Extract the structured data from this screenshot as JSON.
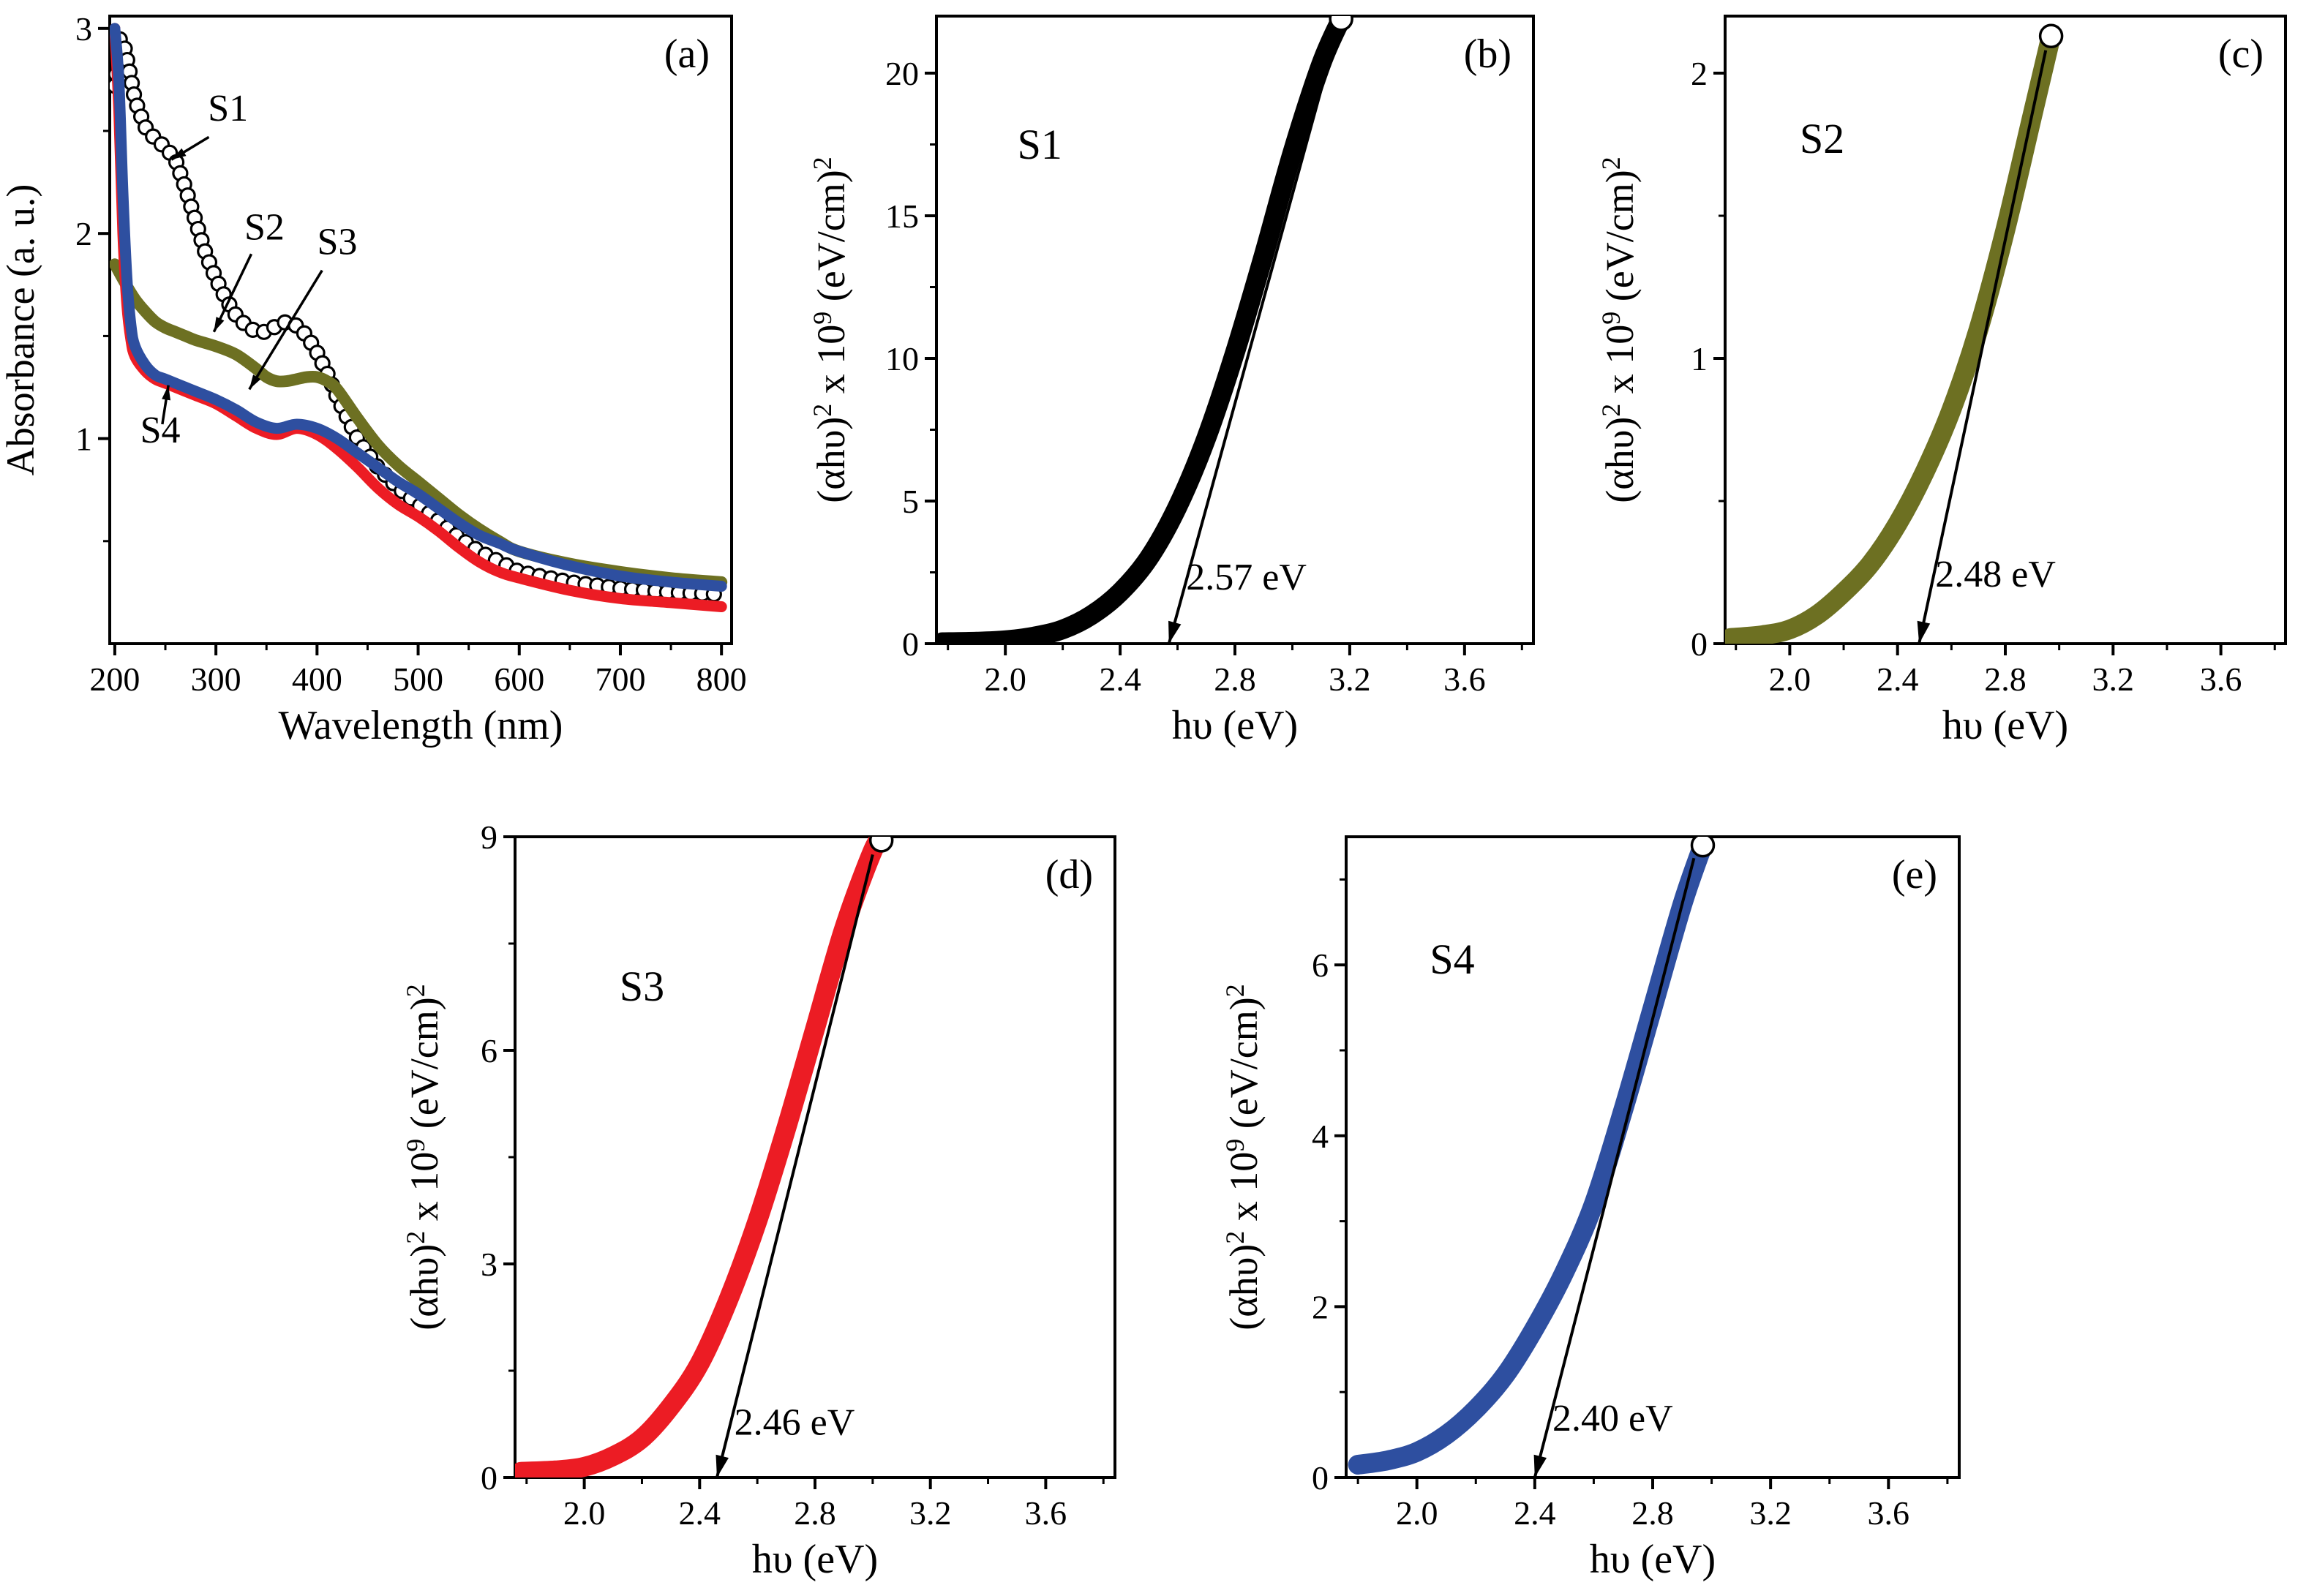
{
  "figure": {
    "background": "#ffffff"
  },
  "colors": {
    "s1": "#000000",
    "s2": "#6d7022",
    "s3": "#ec1c24",
    "s4": "#2e4fa0"
  },
  "chart_data": [
    {
      "id": "a",
      "panel_label": "(a)",
      "type": "line",
      "xlabel": "Wavelength (nm)",
      "ylabel": "Absorbance (a. u.)",
      "xlim": [
        195,
        810
      ],
      "ylim": [
        0,
        3.06
      ],
      "xticks": [
        200,
        300,
        400,
        500,
        600,
        700,
        800
      ],
      "xtick_labels": [
        "200",
        "300",
        "400",
        "500",
        "600",
        "700",
        "800"
      ],
      "yticks": [
        1,
        2,
        3
      ],
      "ytick_labels": [
        "1",
        "2",
        "3"
      ],
      "series": [
        {
          "name": "S1",
          "color": "#000000",
          "marker": "o",
          "width": 3,
          "x": [
            200,
            205,
            210,
            215,
            220,
            230,
            240,
            250,
            260,
            270,
            280,
            290,
            300,
            310,
            320,
            330,
            340,
            350,
            360,
            370,
            380,
            390,
            400,
            410,
            420,
            440,
            460,
            480,
            500,
            520,
            540,
            560,
            580,
            600,
            650,
            700,
            750,
            800
          ],
          "y": [
            2.72,
            2.95,
            2.9,
            2.78,
            2.65,
            2.52,
            2.46,
            2.42,
            2.36,
            2.22,
            2.06,
            1.9,
            1.78,
            1.68,
            1.6,
            1.55,
            1.52,
            1.52,
            1.55,
            1.57,
            1.55,
            1.5,
            1.42,
            1.32,
            1.2,
            1.0,
            0.86,
            0.76,
            0.68,
            0.6,
            0.52,
            0.45,
            0.4,
            0.35,
            0.3,
            0.27,
            0.25,
            0.24
          ]
        },
        {
          "name": "S2",
          "color": "#6d7022",
          "width": 16,
          "x": [
            200,
            210,
            220,
            230,
            240,
            250,
            260,
            270,
            280,
            300,
            320,
            340,
            350,
            360,
            370,
            380,
            390,
            400,
            410,
            420,
            440,
            460,
            480,
            500,
            520,
            540,
            560,
            580,
            600,
            650,
            700,
            750,
            800
          ],
          "y": [
            1.85,
            1.76,
            1.68,
            1.62,
            1.57,
            1.54,
            1.52,
            1.5,
            1.48,
            1.45,
            1.41,
            1.34,
            1.3,
            1.28,
            1.28,
            1.29,
            1.3,
            1.3,
            1.28,
            1.24,
            1.1,
            0.97,
            0.87,
            0.79,
            0.71,
            0.63,
            0.56,
            0.5,
            0.45,
            0.39,
            0.35,
            0.32,
            0.3
          ]
        },
        {
          "name": "S3",
          "color": "#ec1c24",
          "width": 15,
          "x": [
            200,
            204,
            208,
            212,
            216,
            220,
            230,
            240,
            250,
            260,
            280,
            300,
            320,
            340,
            360,
            380,
            400,
            420,
            440,
            460,
            480,
            500,
            520,
            540,
            560,
            580,
            600,
            650,
            700,
            750,
            800
          ],
          "y": [
            3.0,
            2.6,
            2.0,
            1.65,
            1.48,
            1.4,
            1.33,
            1.29,
            1.27,
            1.25,
            1.21,
            1.17,
            1.11,
            1.05,
            1.02,
            1.05,
            1.02,
            0.95,
            0.86,
            0.76,
            0.68,
            0.62,
            0.55,
            0.47,
            0.4,
            0.35,
            0.32,
            0.26,
            0.22,
            0.2,
            0.18
          ]
        },
        {
          "name": "S4",
          "color": "#2e4fa0",
          "width": 15,
          "x": [
            200,
            204,
            208,
            212,
            216,
            220,
            230,
            240,
            250,
            260,
            280,
            300,
            320,
            340,
            360,
            380,
            400,
            420,
            440,
            460,
            480,
            500,
            520,
            540,
            560,
            580,
            600,
            650,
            700,
            750,
            800
          ],
          "y": [
            3.0,
            2.75,
            2.2,
            1.78,
            1.55,
            1.45,
            1.36,
            1.31,
            1.29,
            1.27,
            1.23,
            1.19,
            1.14,
            1.08,
            1.05,
            1.07,
            1.05,
            1.0,
            0.93,
            0.86,
            0.79,
            0.73,
            0.66,
            0.59,
            0.53,
            0.49,
            0.45,
            0.38,
            0.33,
            0.3,
            0.28
          ]
        }
      ],
      "labels": [
        {
          "text": "S1",
          "color": "#000000",
          "x": 312,
          "y": 2.55,
          "size": 52
        },
        {
          "text": "S2",
          "color": "#6d7022",
          "x": 348,
          "y": 1.97,
          "size": 52
        },
        {
          "text": "S3",
          "color": "#ec1c24",
          "x": 420,
          "y": 1.9,
          "size": 52
        },
        {
          "text": "S4",
          "color": "#2e4fa0",
          "x": 245,
          "y": 0.98,
          "size": 52
        }
      ],
      "arrows": [
        {
          "from": [
            293,
            2.47
          ],
          "to": [
            256,
            2.36
          ],
          "color": "#000000"
        },
        {
          "from": [
            335,
            1.9
          ],
          "to": [
            298,
            1.52
          ],
          "color": "#000000"
        },
        {
          "from": [
            405,
            1.82
          ],
          "to": [
            333,
            1.24
          ],
          "color": "#000000"
        },
        {
          "from": [
            247,
            1.07
          ],
          "to": [
            253,
            1.26
          ],
          "color": "#000000"
        }
      ]
    },
    {
      "id": "b",
      "panel_label": "(b)",
      "type": "line",
      "xlabel": "hυ (eV)",
      "ylabel_rich": [
        {
          "t": "(αhυ)"
        },
        {
          "t": "2",
          "sup": 1
        },
        {
          "t": " x 10"
        },
        {
          "t": "9",
          "sup": 1
        },
        {
          "t": " (eV/cm)"
        },
        {
          "t": "2",
          "sup": 1
        }
      ],
      "xlim": [
        1.76,
        3.84
      ],
      "ylim": [
        0,
        22
      ],
      "xticks": [
        2.0,
        2.4,
        2.8,
        3.2,
        3.6
      ],
      "xtick_labels": [
        "2.0",
        "2.4",
        "2.8",
        "3.2",
        "3.6"
      ],
      "yticks": [
        0,
        5,
        10,
        15,
        20
      ],
      "ytick_labels": [
        "0",
        "5",
        "10",
        "15",
        "20"
      ],
      "band_gap_ev": 2.57,
      "series": [
        {
          "name": "S1",
          "color": "#000000",
          "width": 27,
          "x": [
            1.78,
            1.9,
            2.0,
            2.1,
            2.2,
            2.3,
            2.4,
            2.5,
            2.6,
            2.7,
            2.8,
            2.9,
            3.0,
            3.1,
            3.17
          ],
          "y": [
            0.05,
            0.07,
            0.12,
            0.25,
            0.5,
            1.0,
            1.8,
            3.0,
            4.8,
            7.2,
            10.2,
            13.6,
            17.2,
            20.3,
            21.9
          ]
        }
      ],
      "fit_line": {
        "top": [
          3.16,
          21.6
        ],
        "foot": [
          2.57,
          0
        ]
      },
      "end_circle": [
        3.17,
        21.9
      ],
      "labels": [
        {
          "text": "S1",
          "color": "#000000",
          "x": 2.12,
          "y": 17,
          "size": 58
        },
        {
          "text": "2.57 eV",
          "color": "#000000",
          "x": 2.63,
          "y": 1.9,
          "size": 52,
          "anchor": "start"
        }
      ],
      "arrows": []
    },
    {
      "id": "c",
      "panel_label": "(c)",
      "type": "line",
      "xlabel": "hυ (eV)",
      "ylabel_rich": [
        {
          "t": "(αhυ)"
        },
        {
          "t": "2",
          "sup": 1
        },
        {
          "t": " x 10"
        },
        {
          "t": "9",
          "sup": 1
        },
        {
          "t": " (eV/cm)"
        },
        {
          "t": "2",
          "sup": 1
        }
      ],
      "xlim": [
        1.76,
        3.84
      ],
      "ylim": [
        0,
        2.2
      ],
      "xticks": [
        2.0,
        2.4,
        2.8,
        3.2,
        3.6
      ],
      "xtick_labels": [
        "2.0",
        "2.4",
        "2.8",
        "3.2",
        "3.6"
      ],
      "yticks": [
        0,
        1,
        2
      ],
      "ytick_labels": [
        "0",
        "1",
        "2"
      ],
      "band_gap_ev": 2.48,
      "series": [
        {
          "name": "S2",
          "color": "#6d7022",
          "width": 27,
          "x": [
            1.78,
            1.9,
            2.0,
            2.1,
            2.2,
            2.3,
            2.4,
            2.5,
            2.6,
            2.7,
            2.8,
            2.9,
            2.97
          ],
          "y": [
            0.02,
            0.03,
            0.05,
            0.1,
            0.18,
            0.28,
            0.42,
            0.6,
            0.82,
            1.1,
            1.45,
            1.85,
            2.13
          ]
        }
      ],
      "fit_line": {
        "top": [
          2.95,
          2.08
        ],
        "foot": [
          2.48,
          0
        ]
      },
      "end_circle": [
        2.97,
        2.13
      ],
      "labels": [
        {
          "text": "S2",
          "color": "#6d7022",
          "x": 2.12,
          "y": 1.72,
          "size": 58
        },
        {
          "text": "2.48 eV",
          "color": "#000000",
          "x": 2.54,
          "y": 0.2,
          "size": 52,
          "anchor": "start"
        }
      ],
      "arrows": []
    },
    {
      "id": "d",
      "panel_label": "(d)",
      "type": "line",
      "xlabel": "hυ (eV)",
      "ylabel_rich": [
        {
          "t": "(αhυ)"
        },
        {
          "t": "2",
          "sup": 1
        },
        {
          "t": " x 10"
        },
        {
          "t": "9",
          "sup": 1
        },
        {
          "t": " (eV/cm)"
        },
        {
          "t": "2",
          "sup": 1
        }
      ],
      "xlim": [
        1.76,
        3.84
      ],
      "ylim": [
        0,
        9.0
      ],
      "xticks": [
        2.0,
        2.4,
        2.8,
        3.2,
        3.6
      ],
      "xtick_labels": [
        "2.0",
        "2.4",
        "2.8",
        "3.2",
        "3.6"
      ],
      "yticks": [
        0,
        3,
        6,
        9
      ],
      "ytick_labels": [
        "0",
        "3",
        "6",
        "9"
      ],
      "band_gap_ev": 2.46,
      "series": [
        {
          "name": "S3",
          "color": "#ec1c24",
          "width": 27,
          "x": [
            1.78,
            1.9,
            2.0,
            2.1,
            2.2,
            2.3,
            2.4,
            2.5,
            2.6,
            2.7,
            2.8,
            2.9,
            3.0,
            3.03
          ],
          "y": [
            0.08,
            0.1,
            0.15,
            0.3,
            0.55,
            1.0,
            1.6,
            2.5,
            3.6,
            4.9,
            6.3,
            7.7,
            8.8,
            8.95
          ]
        }
      ],
      "fit_line": {
        "top": [
          3.0,
          8.75
        ],
        "foot": [
          2.46,
          0
        ]
      },
      "end_circle": [
        3.03,
        8.95
      ],
      "labels": [
        {
          "text": "S3",
          "color": "#ec1c24",
          "x": 2.2,
          "y": 6.7,
          "size": 58
        },
        {
          "text": "2.46 eV",
          "color": "#000000",
          "x": 2.52,
          "y": 0.6,
          "size": 52,
          "anchor": "start"
        }
      ],
      "arrows": []
    },
    {
      "id": "e",
      "panel_label": "(e)",
      "type": "line",
      "xlabel": "hυ (eV)",
      "ylabel_rich": [
        {
          "t": "(αhυ)"
        },
        {
          "t": "2",
          "sup": 1
        },
        {
          "t": " x 10"
        },
        {
          "t": "9",
          "sup": 1
        },
        {
          "t": " (eV/cm)"
        },
        {
          "t": "2",
          "sup": 1
        }
      ],
      "xlim": [
        1.76,
        3.84
      ],
      "ylim": [
        0,
        7.5
      ],
      "xticks": [
        2.0,
        2.4,
        2.8,
        3.2,
        3.6
      ],
      "xtick_labels": [
        "2.0",
        "2.4",
        "2.8",
        "3.2",
        "3.6"
      ],
      "yticks": [
        0,
        2,
        4,
        6
      ],
      "ytick_labels": [
        "0",
        "2",
        "4",
        "6"
      ],
      "band_gap_ev": 2.4,
      "series": [
        {
          "name": "S4",
          "color": "#2e4fa0",
          "width": 27,
          "x": [
            1.8,
            1.9,
            2.0,
            2.1,
            2.2,
            2.3,
            2.4,
            2.5,
            2.6,
            2.7,
            2.8,
            2.9,
            2.97
          ],
          "y": [
            0.15,
            0.2,
            0.3,
            0.5,
            0.8,
            1.2,
            1.75,
            2.4,
            3.2,
            4.3,
            5.5,
            6.7,
            7.4
          ]
        }
      ],
      "fit_line": {
        "top": [
          2.94,
          7.25
        ],
        "foot": [
          2.4,
          0
        ]
      },
      "end_circle": [
        2.97,
        7.4
      ],
      "labels": [
        {
          "text": "S4",
          "color": "#000000",
          "x": 2.12,
          "y": 5.9,
          "size": 58
        },
        {
          "text": "2.40 eV",
          "color": "#000000",
          "x": 2.46,
          "y": 0.55,
          "size": 52,
          "anchor": "start"
        }
      ],
      "arrows": []
    }
  ]
}
